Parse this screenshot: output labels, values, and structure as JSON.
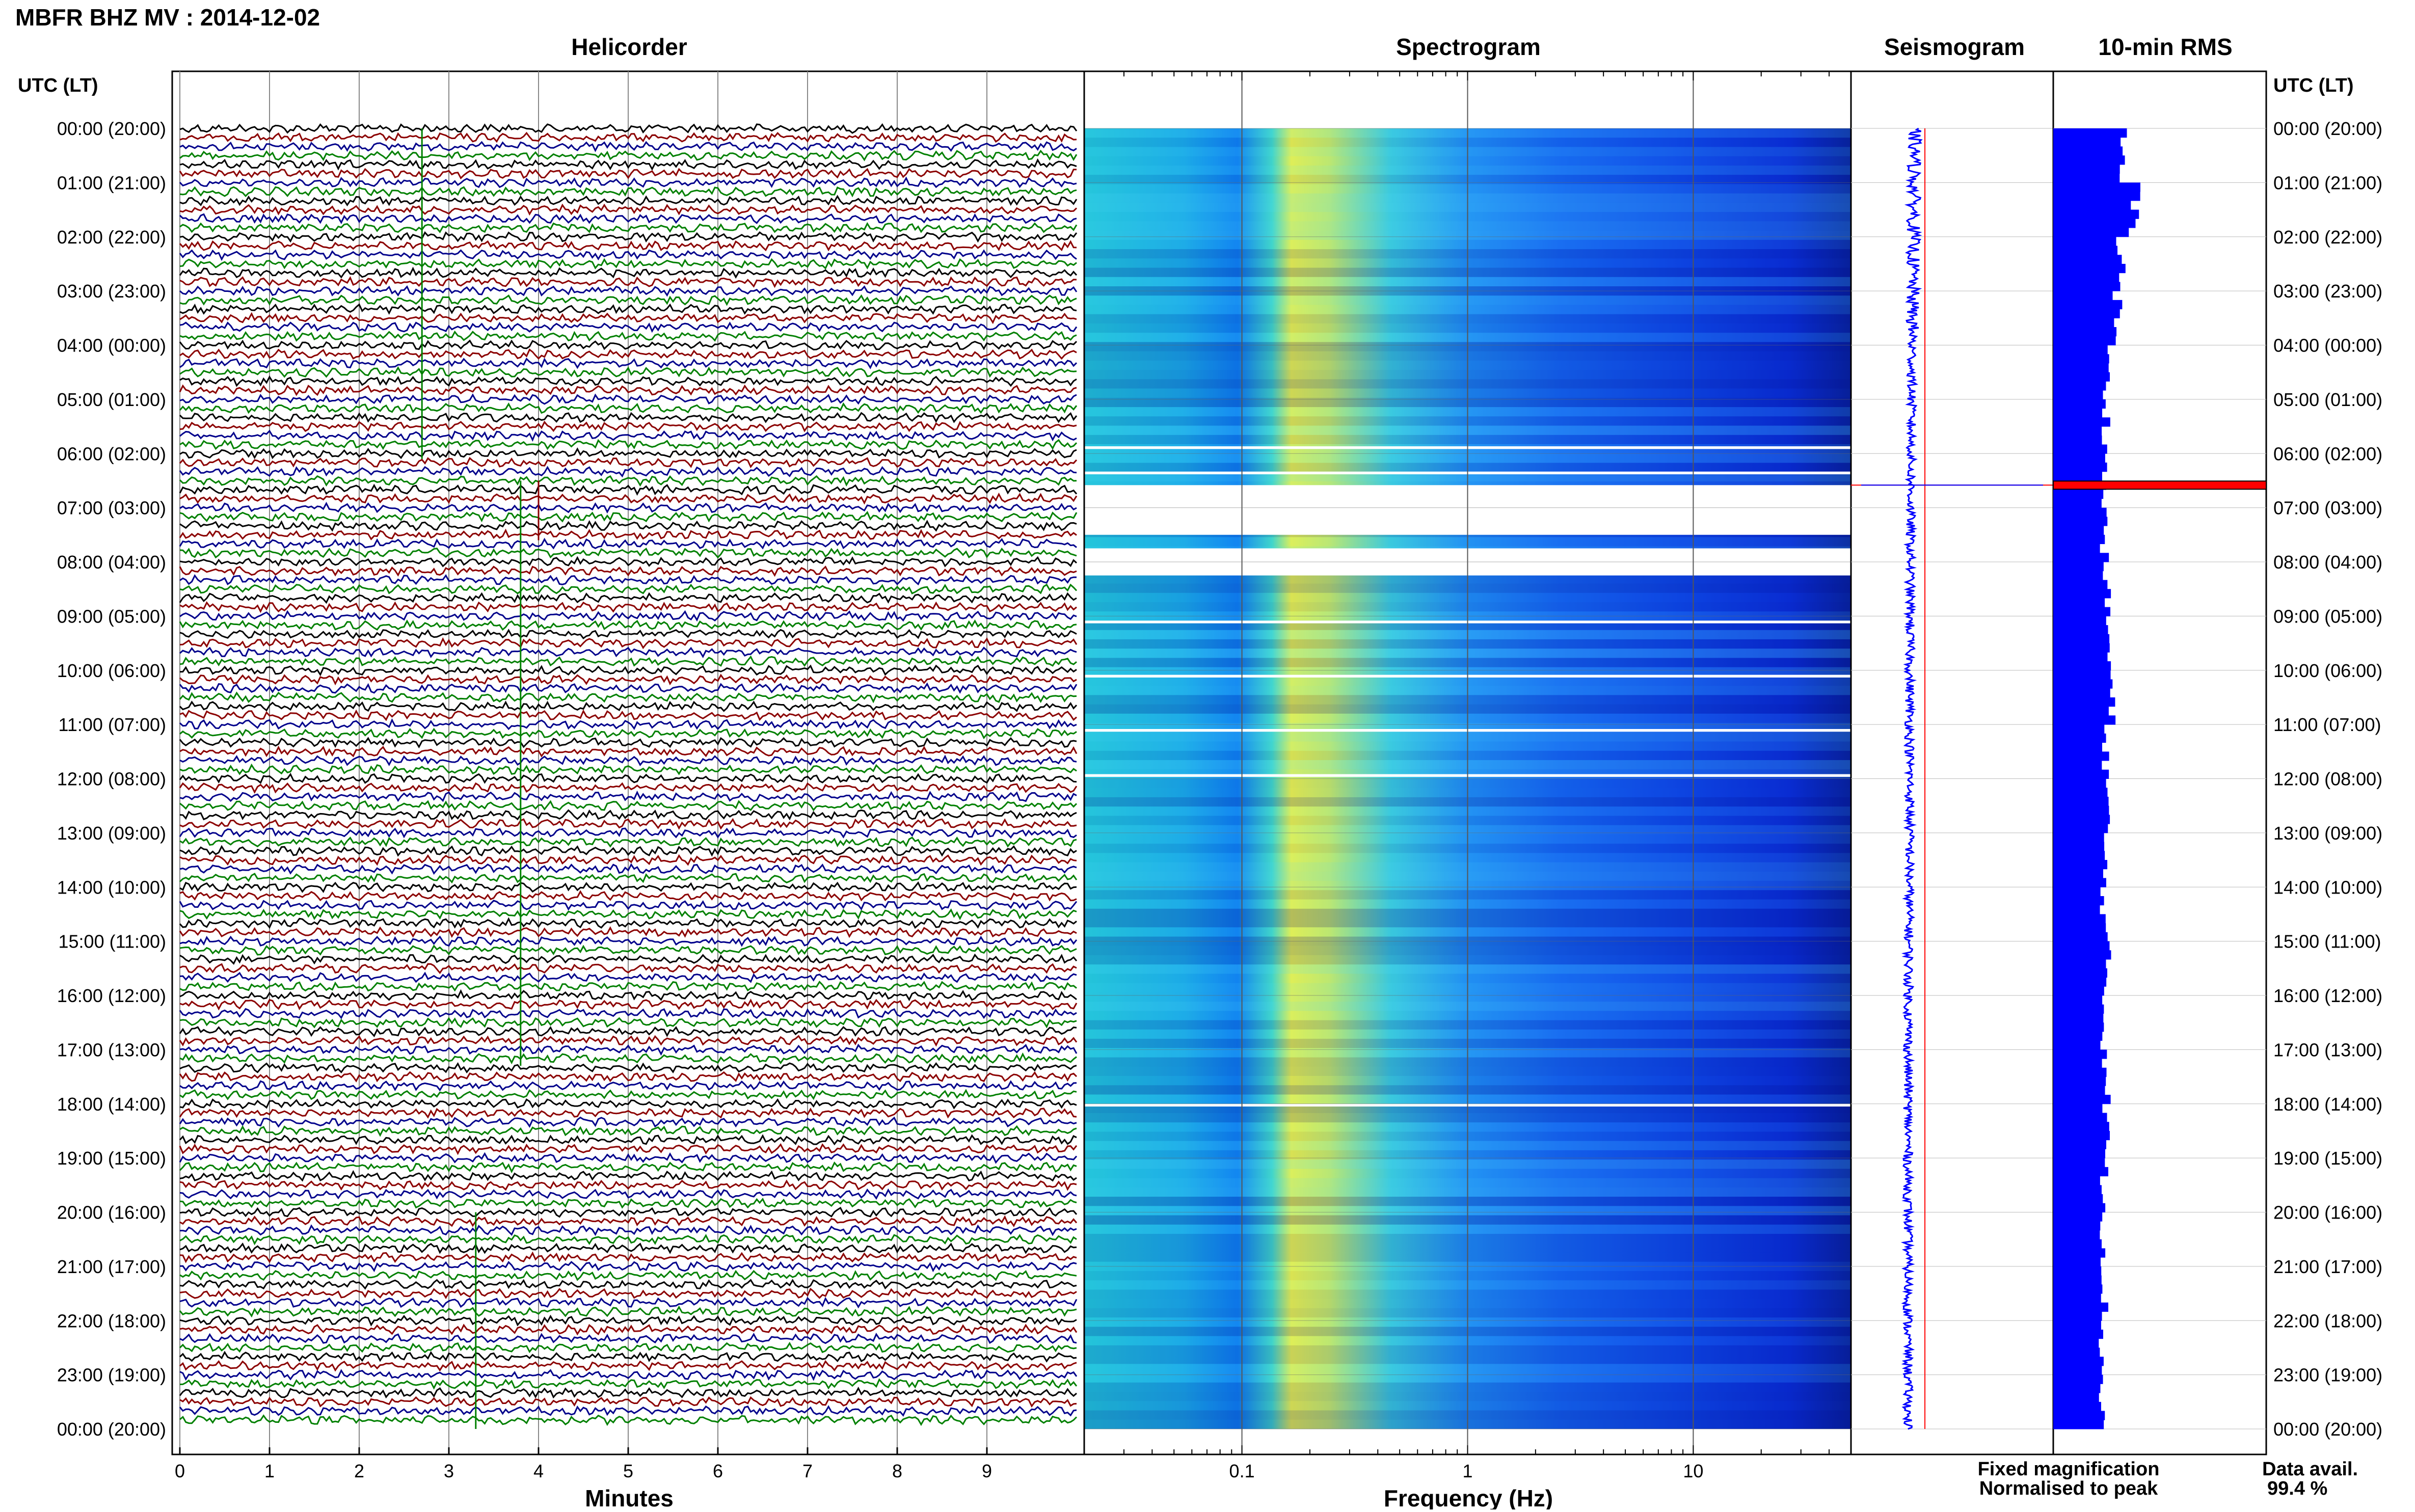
{
  "header": {
    "title": "MBFR BHZ MV : 2014-12-02",
    "left_axis_title": "UTC (LT)",
    "right_axis_title": "UTC (LT)"
  },
  "panels": {
    "helicorder": "Helicorder",
    "spectrogram": "Spectrogram",
    "seismogram": "Seismogram",
    "rms": "10-min RMS"
  },
  "time_labels": [
    "00:00 (20:00)",
    "01:00 (21:00)",
    "02:00 (22:00)",
    "03:00 (23:00)",
    "04:00 (00:00)",
    "05:00 (01:00)",
    "06:00 (02:00)",
    "07:00 (03:00)",
    "08:00 (04:00)",
    "09:00 (05:00)",
    "10:00 (06:00)",
    "11:00 (07:00)",
    "12:00 (08:00)",
    "13:00 (09:00)",
    "14:00 (10:00)",
    "15:00 (11:00)",
    "16:00 (12:00)",
    "17:00 (13:00)",
    "18:00 (14:00)",
    "19:00 (15:00)",
    "20:00 (16:00)",
    "21:00 (17:00)",
    "22:00 (18:00)",
    "23:00 (19:00)",
    "00:00 (20:00)"
  ],
  "footer": {
    "minutes_label": "Minutes",
    "frequency_label": "Frequency (Hz)",
    "legend_fixed": "Fixed magnification",
    "legend_normalised": "Normalised to peak",
    "data_avail_label": "Data avail.",
    "data_avail_value": "99.4 %"
  },
  "colors": {
    "trace_cycle": [
      "#000000",
      "#8b0000",
      "#00008b",
      "#008000"
    ],
    "legend_fixed": "#0000ff",
    "legend_normalised": "#ff0000",
    "rms_bar": "#0000ff",
    "rms_peak": "#ff0000"
  },
  "chart_data": [
    {
      "type": "line",
      "panel": "Helicorder",
      "xlabel": "Minutes",
      "x_ticks": [
        "0",
        "1",
        "2",
        "3",
        "4",
        "5",
        "6",
        "7",
        "8",
        "9"
      ],
      "xlim": [
        0,
        10
      ],
      "rows_per_hour": 6,
      "rows": 144,
      "notes": "Six 10-minute traces per hour, colours cycling black, dark red, dark blue, green"
    },
    {
      "type": "heatmap",
      "panel": "Spectrogram",
      "xlabel": "Frequency (Hz)",
      "x_scale": "log",
      "x_ticks": [
        "0.1",
        "1",
        "10"
      ],
      "xlim": [
        0.02,
        50
      ],
      "gaps_utc": [
        "05:52",
        "06:20",
        "06:35-07:30",
        "07:45-08:15",
        "09:05",
        "10:05",
        "11:05",
        "11:55",
        "18:00"
      ]
    },
    {
      "type": "line",
      "panel": "Seismogram",
      "legend": [
        "Fixed magnification",
        "Normalised to peak"
      ],
      "peak_time_utc": "06:35"
    },
    {
      "type": "bar",
      "panel": "10-min RMS",
      "orientation": "horizontal",
      "categories_hours_utc": [
        0,
        1,
        2,
        3,
        4,
        5,
        6,
        7,
        8,
        9,
        10,
        11,
        12,
        13,
        14,
        15,
        16,
        17,
        18,
        19,
        20,
        21,
        22,
        23
      ],
      "values_relative": [
        0.32,
        0.38,
        0.32,
        0.3,
        0.25,
        0.25,
        0.24,
        0.24,
        0.25,
        0.26,
        0.27,
        0.25,
        0.25,
        0.24,
        0.24,
        0.25,
        0.24,
        0.25,
        0.25,
        0.24,
        0.24,
        0.24,
        0.23,
        0.23
      ],
      "peak": {
        "time_utc": "06:35",
        "value_relative": 1.0
      }
    }
  ]
}
